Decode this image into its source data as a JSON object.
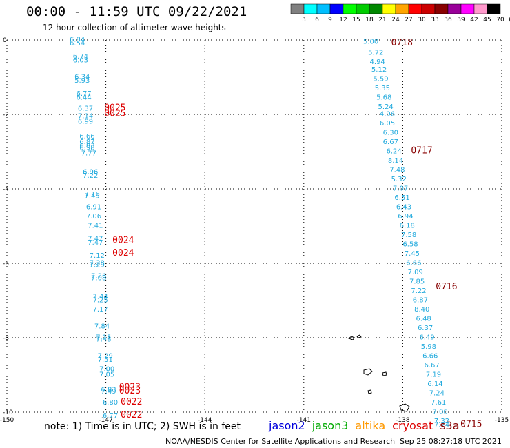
{
  "header": {
    "title": "00:00 - 11:59 UTC 09/22/2021",
    "subtitle": "12 hour collection of altimeter wave heights"
  },
  "colorbar": {
    "colors": [
      "#808080",
      "#00ffff",
      "#00bfff",
      "#0000ff",
      "#00ff00",
      "#00cc00",
      "#008800",
      "#ffff00",
      "#ffa500",
      "#ff0000",
      "#cc0000",
      "#880000",
      "#990099",
      "#ff00ff",
      "#ff99cc",
      "#000000"
    ],
    "ticks": [
      "3",
      "6",
      "9",
      "12",
      "15",
      "18",
      "21",
      "24",
      "27",
      "30",
      "33",
      "36",
      "39",
      "42",
      "45",
      "70",
      "(ft)"
    ]
  },
  "footer": {
    "note": "note: 1) Time is in UTC; 2) SWH is in feet",
    "credit": "NOAA/NESDIS Center for Satellite Applications and Research",
    "timestamp": "Sep 25 08:27:18 UTC 2021",
    "missions": [
      {
        "name": "jason2",
        "color": "#0000dd"
      },
      {
        "name": "jason3",
        "color": "#00aa00"
      },
      {
        "name": "altika",
        "color": "#ff9900"
      },
      {
        "name": "cryosat",
        "color": "#dd0000"
      },
      {
        "name": "s3a",
        "color": "#880000"
      }
    ]
  },
  "chart_data": {
    "type": "scatter",
    "title": "12 hour collection of altimeter wave heights",
    "xlim": [
      -150,
      -135
    ],
    "ylim": [
      -10,
      0
    ],
    "x_ticks": [
      "-150",
      "-147",
      "-144",
      "-141",
      "-138",
      "-135"
    ],
    "y_ticks": [
      "0",
      "-2",
      "-4",
      "-6",
      "-8",
      "-10"
    ],
    "grid": true,
    "swh_color": "#22aadd",
    "series": [
      {
        "name": "cryosat",
        "color": "#dd0000",
        "points": [
          {
            "x": -148.1,
            "y": -0.05,
            "v": "6.84"
          },
          {
            "x": -148.1,
            "y": -0.15,
            "v": "6.54"
          },
          {
            "x": -148.0,
            "y": -0.5,
            "v": "6.74"
          },
          {
            "x": -148.0,
            "y": -0.6,
            "v": "6.03"
          },
          {
            "x": -147.95,
            "y": -1.05,
            "v": "6.34"
          },
          {
            "x": -147.95,
            "y": -1.15,
            "v": "5.93"
          },
          {
            "x": -147.9,
            "y": -1.5,
            "v": "6.77"
          },
          {
            "x": -147.9,
            "y": -1.6,
            "v": "6.44"
          },
          {
            "x": -147.85,
            "y": -1.9,
            "v": "6.37"
          },
          {
            "x": -147.85,
            "y": -2.1,
            "v": "7.14"
          },
          {
            "x": -147.85,
            "y": -2.25,
            "v": "6.99"
          },
          {
            "x": -147.8,
            "y": -2.65,
            "v": "6.66"
          },
          {
            "x": -147.8,
            "y": -2.8,
            "v": "6.87"
          },
          {
            "x": -147.8,
            "y": -2.9,
            "v": "6.83"
          },
          {
            "x": -147.8,
            "y": -2.95,
            "v": "6.98"
          },
          {
            "x": -147.75,
            "y": -3.1,
            "v": "7.77"
          },
          {
            "x": -147.7,
            "y": -3.6,
            "v": "6.96"
          },
          {
            "x": -147.7,
            "y": -3.7,
            "v": "7.22"
          },
          {
            "x": -147.65,
            "y": -4.2,
            "v": "7.16"
          },
          {
            "x": -147.65,
            "y": -4.25,
            "v": "7.45"
          },
          {
            "x": -147.6,
            "y": -4.55,
            "v": "6.91"
          },
          {
            "x": -147.6,
            "y": -4.8,
            "v": "7.06"
          },
          {
            "x": -147.55,
            "y": -5.05,
            "v": "7.41"
          },
          {
            "x": -147.55,
            "y": -5.4,
            "v": "7.47"
          },
          {
            "x": -147.55,
            "y": -5.5,
            "v": "7.47"
          },
          {
            "x": -147.5,
            "y": -5.85,
            "v": "7.12"
          },
          {
            "x": -147.5,
            "y": -6.05,
            "v": "7.28"
          },
          {
            "x": -147.5,
            "y": -6.1,
            "v": "7.29"
          },
          {
            "x": -147.45,
            "y": -6.4,
            "v": "7.26"
          },
          {
            "x": -147.45,
            "y": -6.45,
            "v": "7.08"
          },
          {
            "x": -147.4,
            "y": -6.95,
            "v": "7.44"
          },
          {
            "x": -147.4,
            "y": -7.05,
            "v": "7.25"
          },
          {
            "x": -147.4,
            "y": -7.3,
            "v": "7.17"
          },
          {
            "x": -147.35,
            "y": -7.75,
            "v": "7.84"
          },
          {
            "x": -147.3,
            "y": -8.05,
            "v": "7.15"
          },
          {
            "x": -147.3,
            "y": -8.1,
            "v": "7.48"
          },
          {
            "x": -147.25,
            "y": -8.55,
            "v": "7.29"
          },
          {
            "x": -147.25,
            "y": -8.65,
            "v": "7.51"
          },
          {
            "x": -147.2,
            "y": -8.9,
            "v": "7.00"
          },
          {
            "x": -147.2,
            "y": -9.05,
            "v": "7.05"
          },
          {
            "x": -147.15,
            "y": -9.45,
            "v": "6.83"
          },
          {
            "x": -147.15,
            "y": -9.5,
            "v": "7.49"
          },
          {
            "x": -147.1,
            "y": -9.8,
            "v": "6.80"
          },
          {
            "x": -147.1,
            "y": -10.15,
            "v": "6.77"
          }
        ],
        "time_labels": [
          {
            "x": -147.05,
            "y": -1.9,
            "v": "0025"
          },
          {
            "x": -147.05,
            "y": -2.05,
            "v": "0025"
          },
          {
            "x": -146.8,
            "y": -5.45,
            "v": "0024"
          },
          {
            "x": -146.8,
            "y": -5.8,
            "v": "0024"
          },
          {
            "x": -146.6,
            "y": -9.4,
            "v": "0023"
          },
          {
            "x": -146.6,
            "y": -9.5,
            "v": "0023"
          },
          {
            "x": -146.55,
            "y": -9.8,
            "v": "0022"
          },
          {
            "x": -146.55,
            "y": -10.15,
            "v": "0022"
          }
        ]
      },
      {
        "name": "s3a",
        "color": "#880000",
        "points": [
          {
            "x": -139.2,
            "y": -0.1,
            "v": "5.00"
          },
          {
            "x": -139.05,
            "y": -0.4,
            "v": "5.72"
          },
          {
            "x": -139.0,
            "y": -0.65,
            "v": "4.94"
          },
          {
            "x": -138.95,
            "y": -0.85,
            "v": "5.12"
          },
          {
            "x": -138.9,
            "y": -1.1,
            "v": "5.59"
          },
          {
            "x": -138.85,
            "y": -1.35,
            "v": "5.35"
          },
          {
            "x": -138.8,
            "y": -1.6,
            "v": "5.68"
          },
          {
            "x": -138.75,
            "y": -1.85,
            "v": "5.24"
          },
          {
            "x": -138.7,
            "y": -2.05,
            "v": "4.96"
          },
          {
            "x": -138.7,
            "y": -2.3,
            "v": "6.05"
          },
          {
            "x": -138.6,
            "y": -2.55,
            "v": "6.30"
          },
          {
            "x": -138.6,
            "y": -2.8,
            "v": "6.67"
          },
          {
            "x": -138.5,
            "y": -3.05,
            "v": "6.24"
          },
          {
            "x": -138.45,
            "y": -3.3,
            "v": "8.14"
          },
          {
            "x": -138.4,
            "y": -3.55,
            "v": "7.48"
          },
          {
            "x": -138.35,
            "y": -3.8,
            "v": "5.32"
          },
          {
            "x": -138.3,
            "y": -4.05,
            "v": "7.07"
          },
          {
            "x": -138.25,
            "y": -4.3,
            "v": "6.51"
          },
          {
            "x": -138.2,
            "y": -4.55,
            "v": "6.43"
          },
          {
            "x": -138.15,
            "y": -4.8,
            "v": "6.94"
          },
          {
            "x": -138.1,
            "y": -5.05,
            "v": "6.18"
          },
          {
            "x": -138.05,
            "y": -5.3,
            "v": "7.58"
          },
          {
            "x": -138.0,
            "y": -5.55,
            "v": "6.58"
          },
          {
            "x": -137.95,
            "y": -5.8,
            "v": "7.45"
          },
          {
            "x": -137.9,
            "y": -6.05,
            "v": "6.66"
          },
          {
            "x": -137.85,
            "y": -6.3,
            "v": "7.09"
          },
          {
            "x": -137.8,
            "y": -6.55,
            "v": "7.85"
          },
          {
            "x": -137.75,
            "y": -6.8,
            "v": "7.22"
          },
          {
            "x": -137.7,
            "y": -7.05,
            "v": "6.87"
          },
          {
            "x": -137.65,
            "y": -7.3,
            "v": "8.40"
          },
          {
            "x": -137.6,
            "y": -7.55,
            "v": "6.48"
          },
          {
            "x": -137.55,
            "y": -7.8,
            "v": "6.37"
          },
          {
            "x": -137.5,
            "y": -8.05,
            "v": "6.49"
          },
          {
            "x": -137.45,
            "y": -8.3,
            "v": "5.98"
          },
          {
            "x": -137.4,
            "y": -8.55,
            "v": "6.66"
          },
          {
            "x": -137.35,
            "y": -8.8,
            "v": "6.67"
          },
          {
            "x": -137.3,
            "y": -9.05,
            "v": "7.19"
          },
          {
            "x": -137.25,
            "y": -9.3,
            "v": "6.14"
          },
          {
            "x": -137.2,
            "y": -9.55,
            "v": "7.24"
          },
          {
            "x": -137.15,
            "y": -9.8,
            "v": "7.61"
          },
          {
            "x": -137.1,
            "y": -10.05,
            "v": "7.06"
          },
          {
            "x": -137.05,
            "y": -10.3,
            "v": "7.32"
          },
          {
            "x": -137.05,
            "y": -10.4,
            "v": "7.74"
          }
        ],
        "time_labels": [
          {
            "x": -138.35,
            "y": -0.15,
            "v": "0718"
          },
          {
            "x": -137.75,
            "y": -3.05,
            "v": "0717"
          },
          {
            "x": -137.0,
            "y": -6.7,
            "v": "0716"
          },
          {
            "x": -136.25,
            "y": -10.4,
            "v": "0715"
          }
        ]
      }
    ]
  }
}
